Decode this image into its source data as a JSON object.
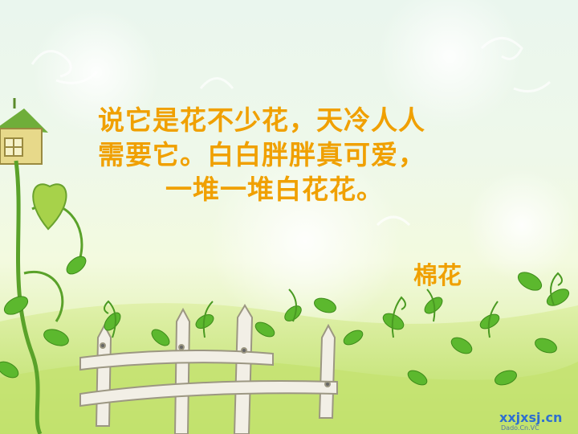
{
  "slide": {
    "riddle_lines": [
      "说它是花不少花，天冷人人",
      "需要它。白白胖胖真可爱，",
      "一堆一堆白花花。"
    ],
    "answer": "棉花",
    "colors": {
      "text": "#f0a000",
      "background_top": "#eaf6ee",
      "background_bottom": "#cfe98a",
      "leaf": "#5cb82e",
      "fence": "#f2efe6"
    },
    "watermark": {
      "text": "xxjxsj.cn",
      "subtext": "Dado.Cn.VC"
    }
  }
}
